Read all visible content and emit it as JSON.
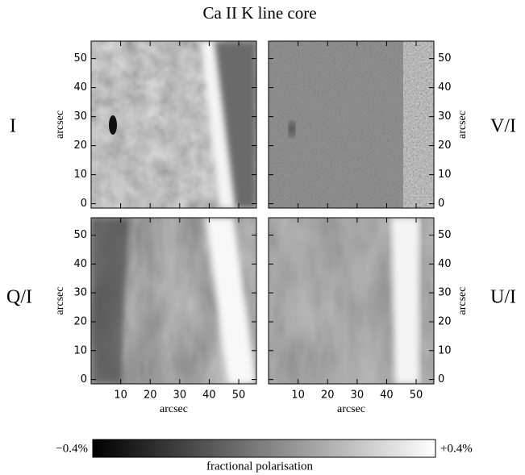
{
  "title": "Ca II K line core",
  "chart_data": [
    {
      "type": "image",
      "label": "I",
      "ylabel": "arcsec",
      "xlim": [
        0,
        56
      ],
      "ylim": [
        -1.5,
        56
      ],
      "xticks": [
        10,
        20,
        30,
        40,
        50
      ],
      "yticks": [
        0,
        10,
        20,
        30,
        40,
        50
      ]
    },
    {
      "type": "image",
      "label": "V/I",
      "ylabel": "arcsec",
      "xlim": [
        0,
        56
      ],
      "ylim": [
        -1.5,
        56
      ],
      "xticks": [
        10,
        20,
        30,
        40,
        50
      ],
      "yticks": [
        0,
        10,
        20,
        30,
        40,
        50
      ]
    },
    {
      "type": "image",
      "label": "Q/I",
      "ylabel": "arcsec",
      "xlabel": "arcsec",
      "xlim": [
        0,
        56
      ],
      "ylim": [
        -1.5,
        56
      ],
      "xticks": [
        10,
        20,
        30,
        40,
        50
      ],
      "yticks": [
        0,
        10,
        20,
        30,
        40,
        50
      ]
    },
    {
      "type": "image",
      "label": "U/I",
      "ylabel": "arcsec",
      "xlabel": "arcsec",
      "xlim": [
        0,
        56
      ],
      "ylim": [
        -1.5,
        56
      ],
      "xticks": [
        10,
        20,
        30,
        40,
        50
      ],
      "yticks": [
        0,
        10,
        20,
        30,
        40,
        50
      ]
    }
  ],
  "colorbar": {
    "label": "fractional polarisation",
    "lim": [
      -0.4,
      0.4
    ],
    "ticks": [
      {
        "value": -0.4,
        "label": "−0.4%"
      },
      {
        "value": 0.4,
        "label": "+0.4%"
      }
    ]
  }
}
